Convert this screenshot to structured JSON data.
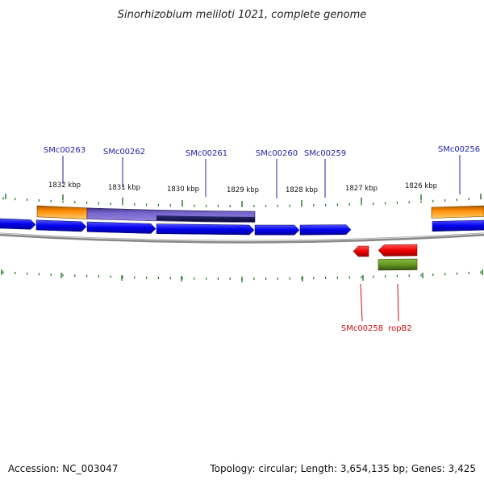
{
  "title": "Sinorhizobium meliloti 1021, complete genome",
  "ticks": [
    {
      "label": "1832 kbp"
    },
    {
      "label": "1831 kbp"
    },
    {
      "label": "1830 kbp"
    },
    {
      "label": "1829 kbp"
    },
    {
      "label": "1828 kbp"
    },
    {
      "label": "1827 kbp"
    },
    {
      "label": "1826 kbp"
    }
  ],
  "forward_genes": [
    {
      "label": "SMc00263"
    },
    {
      "label": "SMc00262"
    },
    {
      "label": "SMc00261"
    },
    {
      "label": "SMc00260"
    },
    {
      "label": "SMc00259"
    },
    {
      "label": "SMc00256"
    }
  ],
  "reverse_genes": [
    {
      "label": "SMc00258"
    },
    {
      "label": "ropB2"
    }
  ],
  "colors": {
    "forward_cds": "#0000ee",
    "reverse_cds": "#ee0000",
    "forward_label": "#2222aa",
    "reverse_label": "#cc1111",
    "orange_feature": "#ff9900",
    "purple_feature": "#7766cc",
    "navy_feature": "#141450",
    "olive_feature": "#669922",
    "tick": "#227722",
    "backbone": "#888888"
  },
  "footer": {
    "accession": "Accession: NC_003047",
    "summary": "Topology: circular; Length: 3,654,135 bp; Genes: 3,425"
  }
}
